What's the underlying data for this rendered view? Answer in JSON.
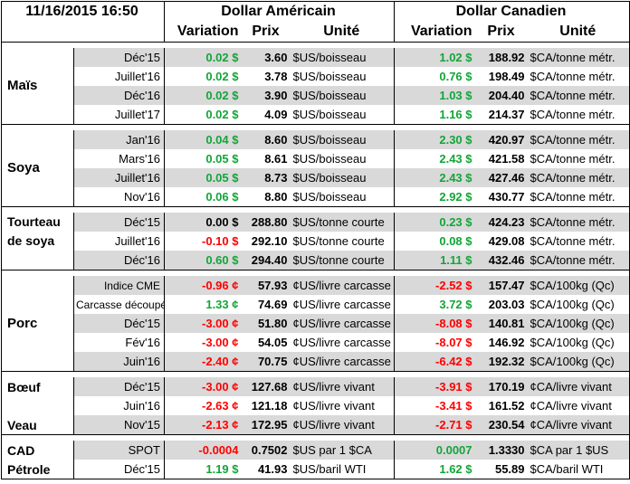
{
  "header": {
    "datetime": "11/16/2015 16:50",
    "usd_title": "Dollar Américain",
    "cad_title": "Dollar Canadien",
    "col_variation": "Variation",
    "col_prix": "Prix",
    "col_unite": "Unité"
  },
  "colors": {
    "positive": "#13a538",
    "negative": "#ff0000",
    "band": "#d9d9d9"
  },
  "groups": [
    {
      "label": "Maïs",
      "rows": [
        {
          "period": "Déc'15",
          "usd_var": "0.02 $",
          "usd_var_sign": "pos",
          "usd_price": "3.60",
          "usd_unit": "$US/boisseau",
          "cad_var": "1.02 $",
          "cad_var_sign": "pos",
          "cad_price": "188.92",
          "cad_unit": "$CA/tonne métr."
        },
        {
          "period": "Juillet'16",
          "usd_var": "0.02 $",
          "usd_var_sign": "pos",
          "usd_price": "3.78",
          "usd_unit": "$US/boisseau",
          "cad_var": "0.76 $",
          "cad_var_sign": "pos",
          "cad_price": "198.49",
          "cad_unit": "$CA/tonne métr."
        },
        {
          "period": "Déc'16",
          "usd_var": "0.02 $",
          "usd_var_sign": "pos",
          "usd_price": "3.90",
          "usd_unit": "$US/boisseau",
          "cad_var": "1.03 $",
          "cad_var_sign": "pos",
          "cad_price": "204.40",
          "cad_unit": "$CA/tonne métr."
        },
        {
          "period": "Juillet'17",
          "usd_var": "0.02 $",
          "usd_var_sign": "pos",
          "usd_price": "4.09",
          "usd_unit": "$US/boisseau",
          "cad_var": "1.16 $",
          "cad_var_sign": "pos",
          "cad_price": "214.37",
          "cad_unit": "$CA/tonne métr."
        }
      ]
    },
    {
      "label": "Soya",
      "rows": [
        {
          "period": "Jan'16",
          "usd_var": "0.04 $",
          "usd_var_sign": "pos",
          "usd_price": "8.60",
          "usd_unit": "$US/boisseau",
          "cad_var": "2.30 $",
          "cad_var_sign": "pos",
          "cad_price": "420.97",
          "cad_unit": "$CA/tonne métr."
        },
        {
          "period": "Mars'16",
          "usd_var": "0.05 $",
          "usd_var_sign": "pos",
          "usd_price": "8.61",
          "usd_unit": "$US/boisseau",
          "cad_var": "2.43 $",
          "cad_var_sign": "pos",
          "cad_price": "421.58",
          "cad_unit": "$CA/tonne métr."
        },
        {
          "period": "Juillet'16",
          "usd_var": "0.05 $",
          "usd_var_sign": "pos",
          "usd_price": "8.73",
          "usd_unit": "$US/boisseau",
          "cad_var": "2.43 $",
          "cad_var_sign": "pos",
          "cad_price": "427.46",
          "cad_unit": "$CA/tonne métr."
        },
        {
          "period": "Nov'16",
          "usd_var": "0.06 $",
          "usd_var_sign": "pos",
          "usd_price": "8.80",
          "usd_unit": "$US/boisseau",
          "cad_var": "2.92 $",
          "cad_var_sign": "pos",
          "cad_price": "430.77",
          "cad_unit": "$CA/tonne métr."
        }
      ]
    },
    {
      "label": "Tourteau",
      "label2": "de soya",
      "rows": [
        {
          "period": "Déc'15",
          "usd_var": "0.00 $",
          "usd_var_sign": "zero",
          "usd_price": "288.80",
          "usd_unit": "$US/tonne courte",
          "cad_var": "0.23 $",
          "cad_var_sign": "pos",
          "cad_price": "424.23",
          "cad_unit": "$CA/tonne métr."
        },
        {
          "period": "Juillet'16",
          "usd_var": "-0.10 $",
          "usd_var_sign": "neg",
          "usd_price": "292.10",
          "usd_unit": "$US/tonne courte",
          "cad_var": "0.08 $",
          "cad_var_sign": "pos",
          "cad_price": "429.08",
          "cad_unit": "$CA/tonne métr."
        },
        {
          "period": "Déc'16",
          "usd_var": "0.60 $",
          "usd_var_sign": "pos",
          "usd_price": "294.40",
          "usd_unit": "$US/tonne courte",
          "cad_var": "1.11 $",
          "cad_var_sign": "pos",
          "cad_price": "432.46",
          "cad_unit": "$CA/tonne métr."
        }
      ]
    },
    {
      "label": "Porc",
      "rows": [
        {
          "period": "Indice CME",
          "usd_var": "-0.96 ¢",
          "usd_var_sign": "neg",
          "usd_price": "57.93",
          "usd_unit": "¢US/livre carcasse",
          "cad_var": "-2.52 $",
          "cad_var_sign": "neg",
          "cad_price": "157.47",
          "cad_unit": "$CA/100kg (Qc)"
        },
        {
          "period": "Carcasse découpée",
          "usd_var": "1.33 ¢",
          "usd_var_sign": "pos",
          "usd_price": "74.69",
          "usd_unit": "¢US/livre carcasse",
          "cad_var": "3.72 $",
          "cad_var_sign": "pos",
          "cad_price": "203.03",
          "cad_unit": "$CA/100kg (Qc)"
        },
        {
          "period": "Déc'15",
          "usd_var": "-3.00 ¢",
          "usd_var_sign": "neg",
          "usd_price": "51.80",
          "usd_unit": "¢US/livre carcasse",
          "cad_var": "-8.08 $",
          "cad_var_sign": "neg",
          "cad_price": "140.81",
          "cad_unit": "$CA/100kg (Qc)"
        },
        {
          "period": "Fév'16",
          "usd_var": "-3.00 ¢",
          "usd_var_sign": "neg",
          "usd_price": "54.05",
          "usd_unit": "¢US/livre carcasse",
          "cad_var": "-8.07 $",
          "cad_var_sign": "neg",
          "cad_price": "146.92",
          "cad_unit": "$CA/100kg (Qc)"
        },
        {
          "period": "Juin'16",
          "usd_var": "-2.40 ¢",
          "usd_var_sign": "neg",
          "usd_price": "70.75",
          "usd_unit": "¢US/livre carcasse",
          "cad_var": "-6.42 $",
          "cad_var_sign": "neg",
          "cad_price": "192.32",
          "cad_unit": "$CA/100kg (Qc)"
        }
      ]
    }
  ],
  "beef": {
    "label_boeuf": "Bœuf",
    "label_veau": "Veau",
    "rows": [
      {
        "period": "Déc'15",
        "usd_var": "-3.00 ¢",
        "usd_var_sign": "neg",
        "usd_price": "127.68",
        "usd_unit": "¢US/livre vivant",
        "cad_var": "-3.91 $",
        "cad_var_sign": "neg",
        "cad_price": "170.19",
        "cad_unit": "¢CA/livre vivant"
      },
      {
        "period": "Juin'16",
        "usd_var": "-2.63 ¢",
        "usd_var_sign": "neg",
        "usd_price": "121.18",
        "usd_unit": "¢US/livre vivant",
        "cad_var": "-3.41 $",
        "cad_var_sign": "neg",
        "cad_price": "161.52",
        "cad_unit": "¢CA/livre vivant"
      },
      {
        "period": "Nov'15",
        "usd_var": "-2.13 ¢",
        "usd_var_sign": "neg",
        "usd_price": "172.95",
        "usd_unit": "¢US/livre vivant",
        "cad_var": "-2.71 $",
        "cad_var_sign": "neg",
        "cad_price": "230.54",
        "cad_unit": "¢CA/livre vivant"
      }
    ]
  },
  "misc": {
    "rows": [
      {
        "label": "CAD",
        "period": "SPOT",
        "usd_var": "-0.0004",
        "usd_var_sign": "neg",
        "usd_price": "0.7502",
        "usd_unit": "$US par 1 $CA",
        "cad_var": "0.0007",
        "cad_var_sign": "pos",
        "cad_price": "1.3330",
        "cad_unit": "$CA par 1 $US"
      },
      {
        "label": "Pétrole",
        "period": "Déc'15",
        "usd_var": "1.19 $",
        "usd_var_sign": "pos",
        "usd_price": "41.93",
        "usd_unit": "$US/baril WTI",
        "cad_var": "1.62 $",
        "cad_var_sign": "pos",
        "cad_price": "55.89",
        "cad_unit": "$CA/baril WTI"
      }
    ]
  }
}
